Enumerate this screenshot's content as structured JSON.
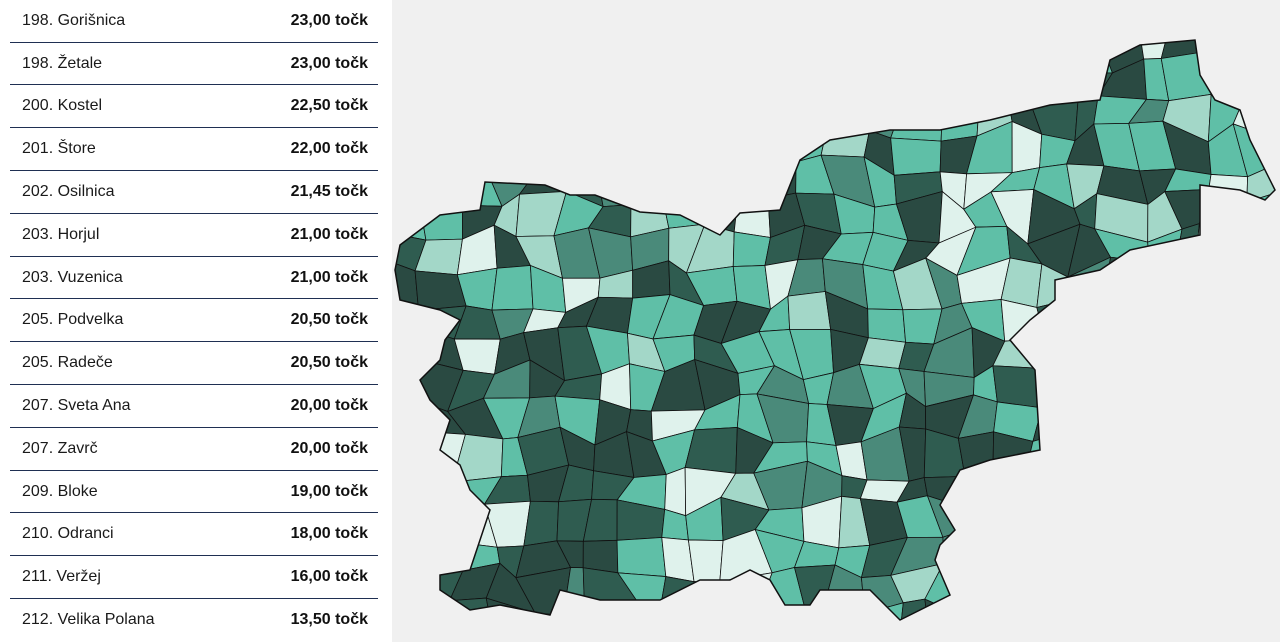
{
  "rows": [
    {
      "label": "198. Gorišnica",
      "points": "23,00 točk"
    },
    {
      "label": "198. Žetale",
      "points": "23,00 točk"
    },
    {
      "label": "200. Kostel",
      "points": "22,50 točk"
    },
    {
      "label": "201. Štore",
      "points": "22,00 točk"
    },
    {
      "label": "202. Osilnica",
      "points": "21,45 točk"
    },
    {
      "label": "203. Horjul",
      "points": "21,00 točk"
    },
    {
      "label": "203. Vuzenica",
      "points": "21,00 točk"
    },
    {
      "label": "205. Podvelka",
      "points": "20,50 točk"
    },
    {
      "label": "205. Radeče",
      "points": "20,50 točk"
    },
    {
      "label": "207. Sveta Ana",
      "points": "20,00 točk"
    },
    {
      "label": "207. Zavrč",
      "points": "20,00 točk"
    },
    {
      "label": "209. Bloke",
      "points": "19,00 točk"
    },
    {
      "label": "210. Odranci",
      "points": "18,00 točk"
    },
    {
      "label": "211. Veržej",
      "points": "16,00 točk"
    },
    {
      "label": "212. Velika Polana",
      "points": "13,50 točk"
    }
  ]
}
